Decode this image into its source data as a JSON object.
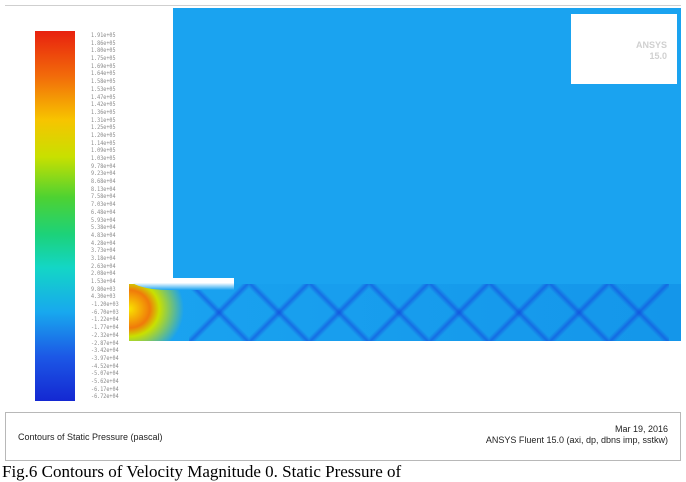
{
  "window": {
    "colorbar_ticks": [
      "1.91e+05",
      "1.86e+05",
      "1.80e+05",
      "1.75e+05",
      "1.69e+05",
      "1.64e+05",
      "1.58e+05",
      "1.53e+05",
      "1.47e+05",
      "1.42e+05",
      "1.36e+05",
      "1.31e+05",
      "1.25e+05",
      "1.20e+05",
      "1.14e+05",
      "1.09e+05",
      "1.03e+05",
      "9.78e+04",
      "9.23e+04",
      "8.68e+04",
      "8.13e+04",
      "7.58e+04",
      "7.03e+04",
      "6.48e+04",
      "5.93e+04",
      "5.38e+04",
      "4.83e+04",
      "4.28e+04",
      "3.73e+04",
      "3.18e+04",
      "2.63e+04",
      "2.08e+04",
      "1.53e+04",
      "9.80e+03",
      "4.30e+03",
      "-1.20e+03",
      "-6.70e+03",
      "-1.22e+04",
      "-1.77e+04",
      "-2.32e+04",
      "-2.87e+04",
      "-3.42e+04",
      "-3.97e+04",
      "-4.52e+04",
      "-5.07e+04",
      "-5.62e+04",
      "-6.17e+04",
      "-6.72e+04"
    ],
    "colors": {
      "background_field": "#1aa3f0",
      "colorbar_max": "#e8210f",
      "colorbar_min": "#1428d2"
    },
    "logo_lines": [
      "ANSYS",
      "15.0"
    ]
  },
  "footer": {
    "title": "Contours of Static Pressure (pascal)",
    "date": "Mar 19, 2016",
    "solver": "ANSYS Fluent 15.0 (axi, dp, dbns imp, sstkw)"
  },
  "caption": "Fig.6 Contours of Velocity Magnitude 0. Static Pressure of"
}
